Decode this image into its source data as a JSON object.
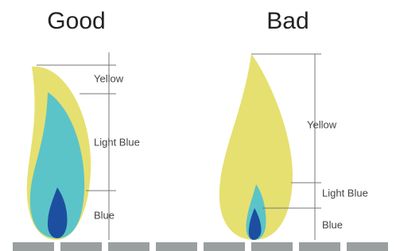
{
  "good": {
    "title": "Good",
    "labels": [
      "Yellow",
      "Light Blue",
      "Blue"
    ]
  },
  "bad": {
    "title": "Bad",
    "labels": [
      "Yellow",
      "Light Blue",
      "Blue"
    ]
  }
}
